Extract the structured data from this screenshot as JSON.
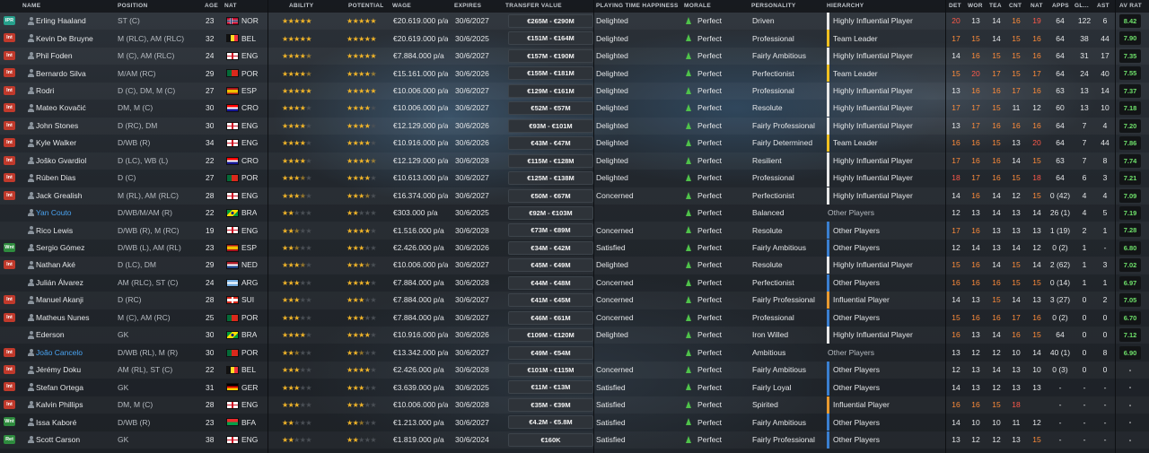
{
  "headers": {
    "name": "NAME",
    "position": "POSITION",
    "age": "AGE",
    "nat": "NAT",
    "ability": "ABILITY",
    "potential": "POTENTIAL",
    "wage": "WAGE",
    "expires": "EXPIRES",
    "transfer_value": "TRANSFER VALUE",
    "playing_time": "PLAYING TIME HAPPINESS",
    "morale": "MORALE",
    "personality": "PERSONALITY",
    "hierarchy": "HIERARCHY",
    "det": "DET",
    "wor": "WOR",
    "tea": "TEA",
    "cnt": "CNT",
    "nat2": "NAT",
    "apps": "APPS",
    "gls": "GL...",
    "ast": "AST",
    "avrat": "AV RAT"
  },
  "colors": {
    "hierarchy_white": "#e8e8e8",
    "hierarchy_yellow": "#f0c020",
    "hierarchy_blue": "#3a7fd0",
    "hierarchy_orange": "#e89a30",
    "avrat_green": "#6ee06a"
  },
  "players": [
    {
      "status": "IPR",
      "status_color": "teal",
      "name": "Erling Haaland",
      "link": false,
      "position": "ST (C)",
      "age": "23",
      "nat": "NOR",
      "flag": "nor",
      "ability": 5,
      "potential": 5,
      "wage": "€20.619.000 p/a",
      "expires": "30/6/2027",
      "tv": "€265M - €290M",
      "pt": "Delighted",
      "morale": "Perfect",
      "personality": "Driven",
      "hierarchy": "Highly Influential Player",
      "hbar": "white",
      "det": "20",
      "wor": "13",
      "tea": "14",
      "cnt": "16",
      "nat2": "19",
      "apps": "64",
      "gls": "122",
      "ast": "6",
      "avrat": "8.42"
    },
    {
      "status": "Int",
      "status_color": "red",
      "name": "Kevin De Bruyne",
      "link": false,
      "position": "M (RLC), AM (RLC)",
      "age": "32",
      "nat": "BEL",
      "flag": "bel",
      "ability": 5,
      "potential": 5,
      "wage": "€20.619.000 p/a",
      "expires": "30/6/2025",
      "tv": "€151M - €164M",
      "pt": "Delighted",
      "morale": "Perfect",
      "personality": "Professional",
      "hierarchy": "Team Leader",
      "hbar": "yellow",
      "det": "17",
      "wor": "15",
      "tea": "14",
      "cnt": "15",
      "nat2": "16",
      "apps": "64",
      "gls": "38",
      "ast": "44",
      "avrat": "7.90"
    },
    {
      "status": "Int",
      "status_color": "red",
      "name": "Phil Foden",
      "link": false,
      "position": "M (C), AM (RLC)",
      "age": "24",
      "nat": "ENG",
      "flag": "eng",
      "ability": 4.5,
      "potential": 5,
      "wage": "€7.884.000 p/a",
      "expires": "30/6/2027",
      "tv": "€157M - €190M",
      "pt": "Delighted",
      "morale": "Perfect",
      "personality": "Fairly Ambitious",
      "hierarchy": "Highly Influential Player",
      "hbar": "white",
      "det": "14",
      "wor": "16",
      "tea": "15",
      "cnt": "15",
      "nat2": "16",
      "apps": "64",
      "gls": "31",
      "ast": "17",
      "avrat": "7.35"
    },
    {
      "status": "Int",
      "status_color": "red",
      "name": "Bernardo Silva",
      "link": false,
      "position": "M/AM (RC)",
      "age": "29",
      "nat": "POR",
      "flag": "por",
      "ability": 4.5,
      "potential": 4.5,
      "wage": "€15.161.000 p/a",
      "expires": "30/6/2026",
      "tv": "€155M - €181M",
      "pt": "Delighted",
      "morale": "Perfect",
      "personality": "Perfectionist",
      "hierarchy": "Team Leader",
      "hbar": "yellow",
      "det": "15",
      "wor": "20",
      "tea": "17",
      "cnt": "15",
      "nat2": "17",
      "apps": "64",
      "gls": "24",
      "ast": "40",
      "avrat": "7.55"
    },
    {
      "status": "Int",
      "status_color": "red",
      "name": "Rodri",
      "link": false,
      "position": "D (C), DM, M (C)",
      "age": "27",
      "nat": "ESP",
      "flag": "esp",
      "ability": 5,
      "potential": 5,
      "wage": "€10.006.000 p/a",
      "expires": "30/6/2027",
      "tv": "€129M - €161M",
      "pt": "Delighted",
      "morale": "Perfect",
      "personality": "Professional",
      "hierarchy": "Highly Influential Player",
      "hbar": "white",
      "det": "13",
      "wor": "16",
      "tea": "16",
      "cnt": "17",
      "nat2": "16",
      "apps": "63",
      "gls": "13",
      "ast": "14",
      "avrat": "7.37"
    },
    {
      "status": "Int",
      "status_color": "red",
      "name": "Mateo Kovačić",
      "link": false,
      "position": "DM, M (C)",
      "age": "30",
      "nat": "CRO",
      "flag": "cro",
      "ability": 4,
      "potential": 4,
      "wage": "€10.006.000 p/a",
      "expires": "30/6/2027",
      "tv": "€52M - €57M",
      "pt": "Delighted",
      "morale": "Perfect",
      "personality": "Resolute",
      "hierarchy": "Highly Influential Player",
      "hbar": "white",
      "det": "17",
      "wor": "17",
      "tea": "15",
      "cnt": "11",
      "nat2": "12",
      "apps": "60",
      "gls": "13",
      "ast": "10",
      "avrat": "7.18"
    },
    {
      "status": "Int",
      "status_color": "red",
      "name": "John Stones",
      "link": false,
      "position": "D (RC), DM",
      "age": "30",
      "nat": "ENG",
      "flag": "eng",
      "ability": 4,
      "potential": 4,
      "wage": "€12.129.000 p/a",
      "expires": "30/6/2026",
      "tv": "€93M - €101M",
      "pt": "Delighted",
      "morale": "Perfect",
      "personality": "Fairly Professional",
      "hierarchy": "Highly Influential Player",
      "hbar": "white",
      "det": "13",
      "wor": "17",
      "tea": "16",
      "cnt": "16",
      "nat2": "16",
      "apps": "64",
      "gls": "7",
      "ast": "4",
      "avrat": "7.20"
    },
    {
      "status": "Int",
      "status_color": "red",
      "name": "Kyle Walker",
      "link": false,
      "position": "D/WB (R)",
      "age": "34",
      "nat": "ENG",
      "flag": "eng",
      "ability": 4,
      "potential": 4,
      "wage": "€10.916.000 p/a",
      "expires": "30/6/2026",
      "tv": "€43M - €47M",
      "pt": "Delighted",
      "morale": "Perfect",
      "personality": "Fairly Determined",
      "hierarchy": "Team Leader",
      "hbar": "yellow",
      "det": "16",
      "wor": "16",
      "tea": "15",
      "cnt": "13",
      "nat2": "20",
      "apps": "64",
      "gls": "7",
      "ast": "44",
      "avrat": "7.86"
    },
    {
      "status": "Int",
      "status_color": "red",
      "name": "Joško Gvardiol",
      "link": false,
      "position": "D (LC), WB (L)",
      "age": "22",
      "nat": "CRO",
      "flag": "cro",
      "ability": 4,
      "potential": 4.5,
      "wage": "€12.129.000 p/a",
      "expires": "30/6/2028",
      "tv": "€115M - €128M",
      "pt": "Delighted",
      "morale": "Perfect",
      "personality": "Resilient",
      "hierarchy": "Highly Influential Player",
      "hbar": "white",
      "det": "17",
      "wor": "16",
      "tea": "16",
      "cnt": "14",
      "nat2": "15",
      "apps": "63",
      "gls": "7",
      "ast": "8",
      "avrat": "7.74"
    },
    {
      "status": "Int",
      "status_color": "red",
      "name": "Rúben Dias",
      "link": false,
      "position": "D (C)",
      "age": "27",
      "nat": "POR",
      "flag": "por",
      "ability": 3.5,
      "potential": 4,
      "wage": "€10.613.000 p/a",
      "expires": "30/6/2027",
      "tv": "€125M - €138M",
      "pt": "Delighted",
      "morale": "Perfect",
      "personality": "Professional",
      "hierarchy": "Highly Influential Player",
      "hbar": "white",
      "det": "18",
      "wor": "17",
      "tea": "16",
      "cnt": "15",
      "nat2": "18",
      "apps": "64",
      "gls": "6",
      "ast": "3",
      "avrat": "7.21"
    },
    {
      "status": "Int",
      "status_color": "red",
      "name": "Jack Grealish",
      "link": false,
      "position": "M (RL), AM (RLC)",
      "age": "28",
      "nat": "ENG",
      "flag": "eng",
      "ability": 3.5,
      "potential": 3.5,
      "wage": "€16.374.000 p/a",
      "expires": "30/6/2027",
      "tv": "€50M - €67M",
      "pt": "Concerned",
      "morale": "Perfect",
      "personality": "Perfectionist",
      "hierarchy": "Highly Influential Player",
      "hbar": "white",
      "det": "14",
      "wor": "16",
      "tea": "14",
      "cnt": "12",
      "nat2": "15",
      "apps": "0 (42)",
      "gls": "4",
      "ast": "4",
      "avrat": "7.09"
    },
    {
      "status": "",
      "status_color": "",
      "name": "Yan Couto",
      "link": true,
      "position": "D/WB/M/AM (R)",
      "age": "22",
      "nat": "BRA",
      "flag": "bra",
      "ability": 2,
      "potential": 2,
      "wage": "€303.000 p/a",
      "expires": "30/6/2025",
      "tv": "€92M - €103M",
      "pt": "",
      "morale": "Perfect",
      "personality": "Balanced",
      "hierarchy": "Other Players",
      "hbar": "none",
      "det": "12",
      "wor": "13",
      "tea": "14",
      "cnt": "13",
      "nat2": "14",
      "apps": "26 (1)",
      "gls": "4",
      "ast": "5",
      "avrat": "7.19"
    },
    {
      "status": "",
      "status_color": "",
      "name": "Rico Lewis",
      "link": false,
      "position": "D/WB (R), M (RC)",
      "age": "19",
      "nat": "ENG",
      "flag": "eng",
      "ability": 2.5,
      "potential": 4,
      "wage": "€1.516.000 p/a",
      "expires": "30/6/2028",
      "tv": "€73M - €89M",
      "pt": "Concerned",
      "morale": "Perfect",
      "personality": "Resolute",
      "hierarchy": "Other Players",
      "hbar": "blue",
      "det": "17",
      "wor": "16",
      "tea": "13",
      "cnt": "13",
      "nat2": "13",
      "apps": "1 (19)",
      "gls": "2",
      "ast": "1",
      "avrat": "7.28"
    },
    {
      "status": "Wnt",
      "status_color": "green",
      "name": "Sergio Gómez",
      "link": false,
      "position": "D/WB (L), AM (RL)",
      "age": "23",
      "nat": "ESP",
      "flag": "esp",
      "ability": 2.5,
      "potential": 3,
      "wage": "€2.426.000 p/a",
      "expires": "30/6/2026",
      "tv": "€34M - €42M",
      "pt": "Satisfied",
      "morale": "Perfect",
      "personality": "Fairly Ambitious",
      "hierarchy": "Other Players",
      "hbar": "blue",
      "det": "12",
      "wor": "14",
      "tea": "13",
      "cnt": "14",
      "nat2": "12",
      "apps": "0 (2)",
      "gls": "1",
      "ast": "-",
      "avrat": "6.80"
    },
    {
      "status": "Int",
      "status_color": "red",
      "name": "Nathan Aké",
      "link": false,
      "position": "D (LC), DM",
      "age": "29",
      "nat": "NED",
      "flag": "ned",
      "ability": 3.5,
      "potential": 3.5,
      "wage": "€10.006.000 p/a",
      "expires": "30/6/2027",
      "tv": "€45M - €49M",
      "pt": "Delighted",
      "morale": "Perfect",
      "personality": "Resolute",
      "hierarchy": "Highly Influential Player",
      "hbar": "white",
      "det": "15",
      "wor": "16",
      "tea": "14",
      "cnt": "15",
      "nat2": "14",
      "apps": "2 (62)",
      "gls": "1",
      "ast": "3",
      "avrat": "7.02"
    },
    {
      "status": "",
      "status_color": "",
      "name": "Julián Álvarez",
      "link": false,
      "position": "AM (RLC), ST (C)",
      "age": "24",
      "nat": "ARG",
      "flag": "arg",
      "ability": 3,
      "potential": 4,
      "wage": "€7.884.000 p/a",
      "expires": "30/6/2028",
      "tv": "€44M - €48M",
      "pt": "Concerned",
      "morale": "Perfect",
      "personality": "Perfectionist",
      "hierarchy": "Other Players",
      "hbar": "blue",
      "det": "16",
      "wor": "16",
      "tea": "16",
      "cnt": "15",
      "nat2": "15",
      "apps": "0 (14)",
      "gls": "1",
      "ast": "1",
      "avrat": "6.97"
    },
    {
      "status": "Int",
      "status_color": "red",
      "name": "Manuel Akanji",
      "link": false,
      "position": "D (RC)",
      "age": "28",
      "nat": "SUI",
      "flag": "sui",
      "ability": 3,
      "potential": 3,
      "wage": "€7.884.000 p/a",
      "expires": "30/6/2027",
      "tv": "€41M - €45M",
      "pt": "Concerned",
      "morale": "Perfect",
      "personality": "Fairly Professional",
      "hierarchy": "Influential Player",
      "hbar": "orange",
      "det": "14",
      "wor": "13",
      "tea": "15",
      "cnt": "14",
      "nat2": "13",
      "apps": "3 (27)",
      "gls": "0",
      "ast": "2",
      "avrat": "7.05"
    },
    {
      "status": "Int",
      "status_color": "red",
      "name": "Matheus Nunes",
      "link": false,
      "position": "M (C), AM (RC)",
      "age": "25",
      "nat": "POR",
      "flag": "por",
      "ability": 3,
      "potential": 3,
      "wage": "€7.884.000 p/a",
      "expires": "30/6/2027",
      "tv": "€46M - €61M",
      "pt": "Concerned",
      "morale": "Perfect",
      "personality": "Professional",
      "hierarchy": "Other Players",
      "hbar": "blue",
      "det": "15",
      "wor": "16",
      "tea": "16",
      "cnt": "17",
      "nat2": "16",
      "apps": "0 (2)",
      "gls": "0",
      "ast": "0",
      "avrat": "6.70"
    },
    {
      "status": "",
      "status_color": "",
      "name": "Ederson",
      "link": false,
      "position": "GK",
      "age": "30",
      "nat": "BRA",
      "flag": "bra",
      "ability": 4,
      "potential": 4,
      "wage": "€10.916.000 p/a",
      "expires": "30/6/2026",
      "tv": "€109M - €120M",
      "pt": "Delighted",
      "morale": "Perfect",
      "personality": "Iron Willed",
      "hierarchy": "Highly Influential Player",
      "hbar": "white",
      "det": "16",
      "wor": "13",
      "tea": "14",
      "cnt": "16",
      "nat2": "15",
      "apps": "64",
      "gls": "0",
      "ast": "0",
      "avrat": "7.12"
    },
    {
      "status": "Int",
      "status_color": "red",
      "name": "João Cancelo",
      "link": true,
      "position": "D/WB (RL), M (R)",
      "age": "30",
      "nat": "POR",
      "flag": "por",
      "ability": 2.5,
      "potential": 2.5,
      "wage": "€13.342.000 p/a",
      "expires": "30/6/2027",
      "tv": "€49M - €54M",
      "pt": "",
      "morale": "Perfect",
      "personality": "Ambitious",
      "hierarchy": "Other Players",
      "hbar": "none",
      "det": "13",
      "wor": "12",
      "tea": "12",
      "cnt": "10",
      "nat2": "14",
      "apps": "40 (1)",
      "gls": "0",
      "ast": "8",
      "avrat": "6.90"
    },
    {
      "status": "Int",
      "status_color": "red",
      "name": "Jérémy Doku",
      "link": false,
      "position": "AM (RL), ST (C)",
      "age": "22",
      "nat": "BEL",
      "flag": "bel",
      "ability": 3,
      "potential": 4,
      "wage": "€2.426.000 p/a",
      "expires": "30/6/2028",
      "tv": "€101M - €115M",
      "pt": "Concerned",
      "morale": "Perfect",
      "personality": "Fairly Ambitious",
      "hierarchy": "Other Players",
      "hbar": "blue",
      "det": "12",
      "wor": "13",
      "tea": "14",
      "cnt": "13",
      "nat2": "10",
      "apps": "0 (3)",
      "gls": "0",
      "ast": "0",
      "avrat": "-"
    },
    {
      "status": "Int",
      "status_color": "red",
      "name": "Stefan Ortega",
      "link": false,
      "position": "GK",
      "age": "31",
      "nat": "GER",
      "flag": "ger",
      "ability": 3,
      "potential": 3,
      "wage": "€3.639.000 p/a",
      "expires": "30/6/2025",
      "tv": "€11M - €13M",
      "pt": "Satisfied",
      "morale": "Perfect",
      "personality": "Fairly Loyal",
      "hierarchy": "Other Players",
      "hbar": "blue",
      "det": "14",
      "wor": "13",
      "tea": "12",
      "cnt": "13",
      "nat2": "13",
      "apps": "-",
      "gls": "-",
      "ast": "-",
      "avrat": "-"
    },
    {
      "status": "Int",
      "status_color": "red",
      "name": "Kalvin Phillips",
      "link": false,
      "position": "DM, M (C)",
      "age": "28",
      "nat": "ENG",
      "flag": "eng",
      "ability": 3,
      "potential": 3,
      "wage": "€10.006.000 p/a",
      "expires": "30/6/2028",
      "tv": "€35M - €39M",
      "pt": "Satisfied",
      "morale": "Perfect",
      "personality": "Spirited",
      "hierarchy": "Influential Player",
      "hbar": "orange",
      "det": "16",
      "wor": "16",
      "tea": "15",
      "cnt": "18",
      "nat2": "",
      "apps": "-",
      "gls": "-",
      "ast": "-",
      "avrat": "-"
    },
    {
      "status": "Wnt",
      "status_color": "green",
      "name": "Issa Kaboré",
      "link": false,
      "position": "D/WB (R)",
      "age": "23",
      "nat": "BFA",
      "flag": "bfa",
      "ability": 2,
      "potential": 2.5,
      "wage": "€1.213.000 p/a",
      "expires": "30/6/2027",
      "tv": "€4.2M - €5.8M",
      "pt": "Satisfied",
      "morale": "Perfect",
      "personality": "Fairly Ambitious",
      "hierarchy": "Other Players",
      "hbar": "blue",
      "det": "14",
      "wor": "10",
      "tea": "10",
      "cnt": "11",
      "nat2": "12",
      "apps": "-",
      "gls": "-",
      "ast": "-",
      "avrat": "-"
    },
    {
      "status": "Ret",
      "status_color": "green",
      "name": "Scott Carson",
      "link": false,
      "position": "GK",
      "age": "38",
      "nat": "ENG",
      "flag": "eng",
      "ability": 2,
      "potential": 2,
      "wage": "€1.819.000 p/a",
      "expires": "30/6/2024",
      "tv": "€160K",
      "pt": "Satisfied",
      "morale": "Perfect",
      "personality": "Fairly Professional",
      "hierarchy": "Other Players",
      "hbar": "blue",
      "det": "13",
      "wor": "12",
      "tea": "12",
      "cnt": "13",
      "nat2": "15",
      "apps": "-",
      "gls": "-",
      "ast": "-",
      "avrat": "-"
    }
  ]
}
